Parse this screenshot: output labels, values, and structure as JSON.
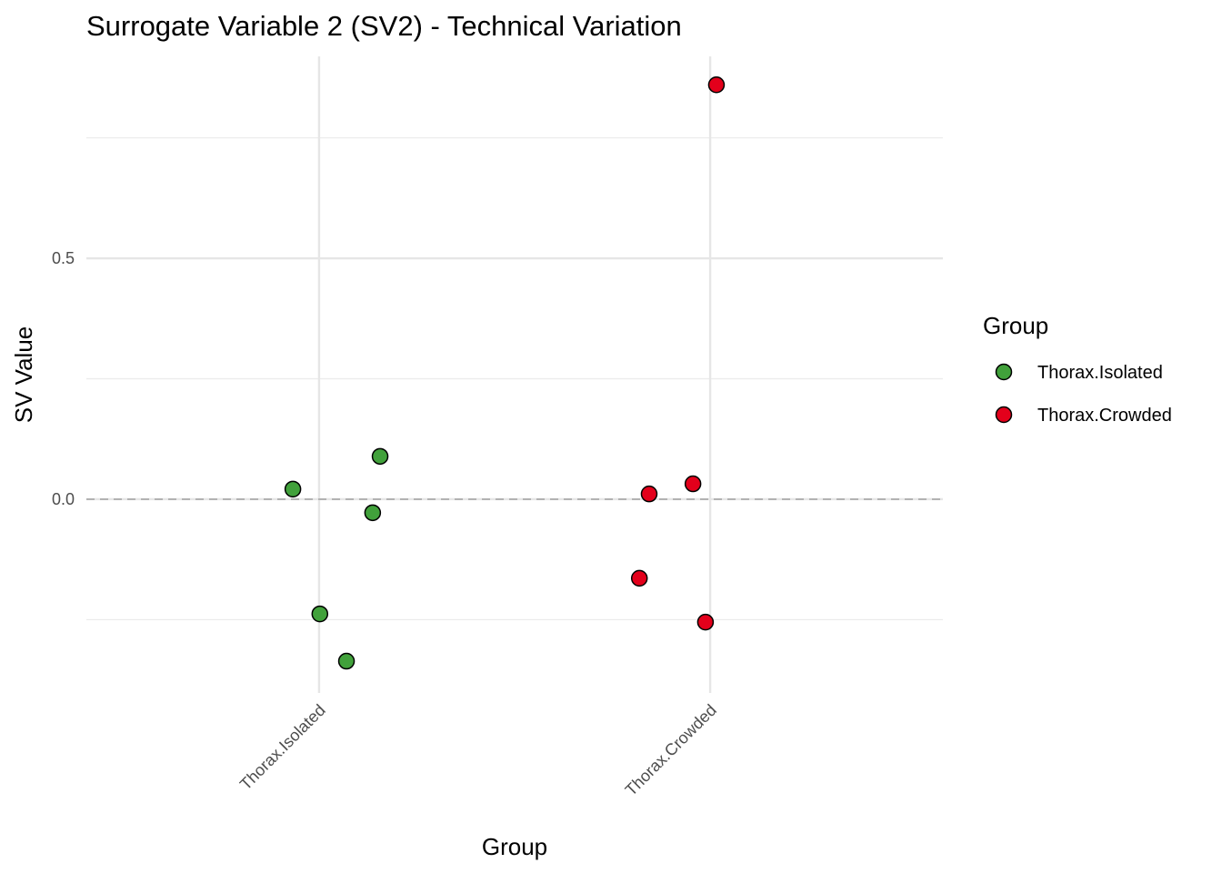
{
  "chart_data": {
    "type": "scatter",
    "title": "Surrogate Variable 2 (SV2) - Technical Variation",
    "xlabel": "Group",
    "ylabel": "SV Value",
    "categories": [
      "Thorax.Isolated",
      "Thorax.Crowded"
    ],
    "y_ticks": [
      {
        "value": 0.5,
        "label": "0.5"
      },
      {
        "value": 0.0,
        "label": "0.0"
      }
    ],
    "y_minor_grid": [
      0.75,
      0.25,
      -0.25
    ],
    "ylim": [
      -0.402,
      0.919
    ],
    "grid": true,
    "reference_line": {
      "value": 0,
      "style": "dashed",
      "color": "#b3b3b3"
    },
    "legend": {
      "title": "Group",
      "placement": "right"
    },
    "series": [
      {
        "name": "Thorax.Isolated",
        "color": "#41A13B",
        "points": [
          {
            "category": "Thorax.Isolated",
            "jitter": -0.067,
            "y": 0.021
          },
          {
            "category": "Thorax.Isolated",
            "jitter": 0.156,
            "y": 0.089
          },
          {
            "category": "Thorax.Isolated",
            "jitter": 0.137,
            "y": -0.028
          },
          {
            "category": "Thorax.Isolated",
            "jitter": 0.002,
            "y": -0.238
          },
          {
            "category": "Thorax.Isolated",
            "jitter": 0.07,
            "y": -0.336
          }
        ]
      },
      {
        "name": "Thorax.Crowded",
        "color": "#E3001B",
        "points": [
          {
            "category": "Thorax.Crowded",
            "jitter": 0.016,
            "y": 0.86
          },
          {
            "category": "Thorax.Crowded",
            "jitter": -0.156,
            "y": 0.011
          },
          {
            "category": "Thorax.Crowded",
            "jitter": -0.044,
            "y": 0.032
          },
          {
            "category": "Thorax.Crowded",
            "jitter": -0.181,
            "y": -0.164
          },
          {
            "category": "Thorax.Crowded",
            "jitter": -0.012,
            "y": -0.255
          }
        ]
      }
    ]
  }
}
